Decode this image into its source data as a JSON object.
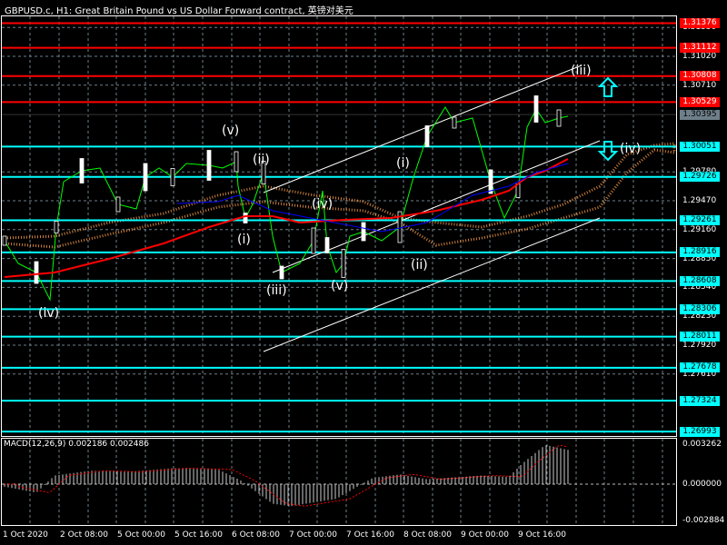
{
  "header": {
    "title": "GBPUSD.c, H1:  Great Britain Pound vs US Dollar Forward contract, 英镑对美元"
  },
  "colors": {
    "background": "#000000",
    "support": "#00ffff",
    "resistance": "#ff0000",
    "current": "#6e7f8a",
    "price": "#00ff00",
    "ma_red": "#ff0000",
    "ma_blue": "#0000ff",
    "cloud": "#ff9f4a"
  },
  "price_axis": [
    "1.31330",
    "1.31020",
    "1.30710",
    "1.29780",
    "1.29470",
    "1.29160",
    "1.28850",
    "1.28540",
    "1.28230",
    "1.27920",
    "1.27610"
  ],
  "levels": [
    {
      "value": "1.31376",
      "type": "resistance"
    },
    {
      "value": "1.31112",
      "type": "resistance"
    },
    {
      "value": "1.30808",
      "type": "resistance"
    },
    {
      "value": "1.30529",
      "type": "resistance"
    },
    {
      "value": "1.30395",
      "type": "current"
    },
    {
      "value": "1.30051",
      "type": "support"
    },
    {
      "value": "1.29726",
      "type": "support"
    },
    {
      "value": "1.29261",
      "type": "support"
    },
    {
      "value": "1.28916",
      "type": "support"
    },
    {
      "value": "1.28608",
      "type": "support"
    },
    {
      "value": "1.28306",
      "type": "support"
    },
    {
      "value": "1.28011",
      "type": "support"
    },
    {
      "value": "1.27678",
      "type": "support"
    },
    {
      "value": "1.27324",
      "type": "support"
    },
    {
      "value": "1.26993",
      "type": "support"
    }
  ],
  "waves": [
    "(iv)",
    "(v)",
    "(ii)",
    "(i)",
    "(iii)",
    "(iv)",
    "(v)",
    "(i)",
    "(ii)",
    "(iii)",
    "(iv)"
  ],
  "arrows": [
    {
      "icon": "arrow-up-icon"
    },
    {
      "icon": "arrow-down-icon"
    }
  ],
  "macd": {
    "label": "MACD(12,26,9) 0.002186 0.002486",
    "axis": [
      "0.003262",
      "0.000000",
      "-0.002884"
    ]
  },
  "time_axis": [
    "1 Oct 2020",
    "2 Oct 08:00",
    "5 Oct 00:00",
    "5 Oct 16:00",
    "6 Oct 08:00",
    "7 Oct 00:00",
    "7 Oct 16:00",
    "8 Oct 08:00",
    "9 Oct 00:00",
    "9 Oct 16:00"
  ]
}
